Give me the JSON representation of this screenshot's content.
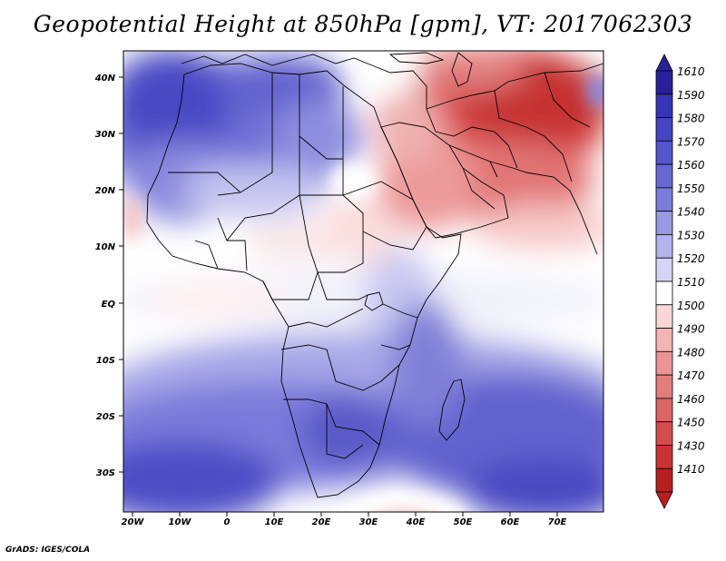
{
  "title": "Geopotential Height at 850hPa [gpm], VT: 2017062303",
  "credit": "GrADS: IGES/COLA",
  "lon_ticks": [
    "20W",
    "10W",
    "0",
    "10E",
    "20E",
    "30E",
    "40E",
    "50E",
    "60E",
    "70E"
  ],
  "lat_ticks": [
    "40N",
    "30N",
    "20N",
    "10N",
    "EQ",
    "10S",
    "20S",
    "30S"
  ],
  "colorbar": {
    "levels": [
      "1610",
      "1590",
      "1580",
      "1570",
      "1560",
      "1550",
      "1540",
      "1530",
      "1520",
      "1510",
      "1500",
      "1490",
      "1480",
      "1470",
      "1460",
      "1450",
      "1430",
      "1410"
    ],
    "colors": [
      "#2a1f9a",
      "#3535b8",
      "#4444c4",
      "#5555cc",
      "#6868d4",
      "#7c7cdc",
      "#9898e4",
      "#b4b4ec",
      "#d4d4f4",
      "#ffffff",
      "#fad6d6",
      "#f4b4b4",
      "#ec9494",
      "#e47c7c",
      "#dc6464",
      "#d44c4c",
      "#c83434",
      "#b82020"
    ]
  },
  "colors": {
    "high": "#3a32b8",
    "neutral": "#ffffff",
    "low": "#c82828"
  }
}
